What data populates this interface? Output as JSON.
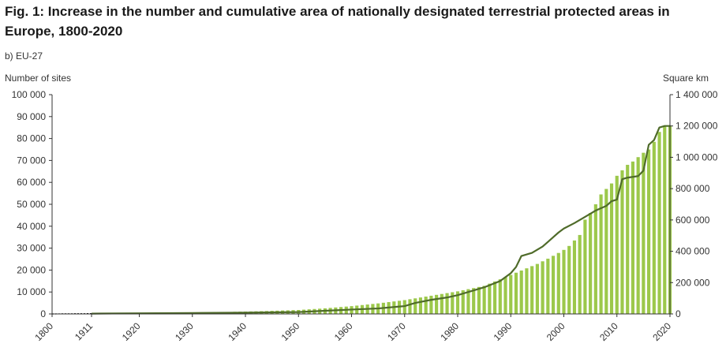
{
  "header": {
    "title": "Fig. 1: Increase in the number and cumulative area of nationally designated terrestrial protected areas in Europe, 1800-2020",
    "subtitle": "b) EU-27",
    "ylabel_left": "Number of sites",
    "ylabel_right": "Square km"
  },
  "colors": {
    "bars": "#9cc84b",
    "line": "#4f6b2a",
    "axis": "#333333",
    "text": "#222222"
  },
  "chart_data": {
    "type": "bar",
    "title": "Fig. 1: Increase in the number and cumulative area of nationally designated terrestrial protected areas in Europe, 1800-2020",
    "subtitle": "b) EU-27",
    "x_ticks": [
      "1800",
      "1911",
      "1920",
      "1930",
      "1940",
      "1950",
      "1960",
      "1970",
      "1980",
      "1990",
      "2000",
      "2010",
      "2020"
    ],
    "x_tick_years": [
      1800,
      1911,
      1920,
      1930,
      1940,
      1950,
      1960,
      1970,
      1980,
      1990,
      2000,
      2010,
      2020
    ],
    "y_left": {
      "label": "Number of sites",
      "ylim": [
        0,
        100000
      ],
      "ticks": [
        "0",
        "10 000",
        "20 000",
        "30 000",
        "40 000",
        "50 000",
        "60 000",
        "70 000",
        "80 000",
        "90 000",
        "100 000"
      ]
    },
    "y_right": {
      "label": "Square km",
      "ylim": [
        0,
        1400000
      ],
      "ticks": [
        "0",
        "200 000",
        "400 000",
        "600 000",
        "800 000",
        "1 000 000",
        "1 200 000",
        "1 400 000"
      ]
    },
    "series": [
      {
        "type": "bar",
        "axis": "left",
        "x": [
          1911,
          1912,
          1913,
          1914,
          1915,
          1916,
          1917,
          1918,
          1919,
          1920,
          1921,
          1922,
          1923,
          1924,
          1925,
          1926,
          1927,
          1928,
          1929,
          1930,
          1931,
          1932,
          1933,
          1934,
          1935,
          1936,
          1937,
          1938,
          1939,
          1940,
          1941,
          1942,
          1943,
          1944,
          1945,
          1946,
          1947,
          1948,
          1949,
          1950,
          1951,
          1952,
          1953,
          1954,
          1955,
          1956,
          1957,
          1958,
          1959,
          1960,
          1961,
          1962,
          1963,
          1964,
          1965,
          1966,
          1967,
          1968,
          1969,
          1970,
          1971,
          1972,
          1973,
          1974,
          1975,
          1976,
          1977,
          1978,
          1979,
          1980,
          1981,
          1982,
          1983,
          1984,
          1985,
          1986,
          1987,
          1988,
          1989,
          1990,
          1991,
          1992,
          1993,
          1994,
          1995,
          1996,
          1997,
          1998,
          1999,
          2000,
          2001,
          2002,
          2003,
          2004,
          2005,
          2006,
          2007,
          2008,
          2009,
          2010,
          2011,
          2012,
          2013,
          2014,
          2015,
          2016,
          2017,
          2018,
          2019,
          2020
        ],
        "values": [
          100,
          110,
          120,
          130,
          140,
          150,
          170,
          190,
          210,
          250,
          280,
          310,
          340,
          370,
          400,
          430,
          460,
          490,
          520,
          560,
          600,
          640,
          680,
          720,
          780,
          840,
          900,
          960,
          1020,
          1080,
          1140,
          1200,
          1260,
          1320,
          1400,
          1480,
          1560,
          1640,
          1720,
          1800,
          1950,
          2100,
          2250,
          2400,
          2550,
          2750,
          2950,
          3150,
          3350,
          3550,
          3800,
          4050,
          4300,
          4550,
          4800,
          5100,
          5400,
          5700,
          6000,
          6300,
          6700,
          7100,
          7500,
          7900,
          8300,
          8700,
          9100,
          9500,
          9900,
          10300,
          10800,
          11300,
          11800,
          12300,
          12800,
          13800,
          14800,
          15800,
          16800,
          17800,
          18800,
          19800,
          20800,
          21800,
          22800,
          24000,
          25200,
          26500,
          27800,
          29200,
          31000,
          33500,
          36000,
          43000,
          46000,
          50000,
          54500,
          57000,
          59500,
          63000,
          65500,
          68000,
          69500,
          71500,
          73500,
          75000,
          78500,
          83000,
          85500,
          86000
        ]
      },
      {
        "type": "line",
        "axis": "right",
        "x": [
          1800,
          1911,
          1920,
          1930,
          1940,
          1950,
          1955,
          1960,
          1965,
          1970,
          1972,
          1975,
          1978,
          1980,
          1982,
          1984,
          1985,
          1988,
          1990,
          1991,
          1992,
          1993,
          1994,
          1995,
          1996,
          1997,
          1998,
          1999,
          2000,
          2002,
          2004,
          2006,
          2008,
          2009,
          2010,
          2011,
          2012,
          2013,
          2014,
          2015,
          2016,
          2017,
          2018,
          2019,
          2020
        ],
        "values": [
          0,
          2000,
          4000,
          6000,
          8000,
          12000,
          20000,
          28000,
          35000,
          50000,
          70000,
          90000,
          105000,
          120000,
          140000,
          160000,
          170000,
          210000,
          260000,
          300000,
          370000,
          380000,
          390000,
          410000,
          430000,
          460000,
          490000,
          520000,
          545000,
          580000,
          620000,
          660000,
          690000,
          720000,
          730000,
          860000,
          870000,
          875000,
          880000,
          915000,
          1080000,
          1110000,
          1190000,
          1200000,
          1200000
        ]
      }
    ]
  }
}
